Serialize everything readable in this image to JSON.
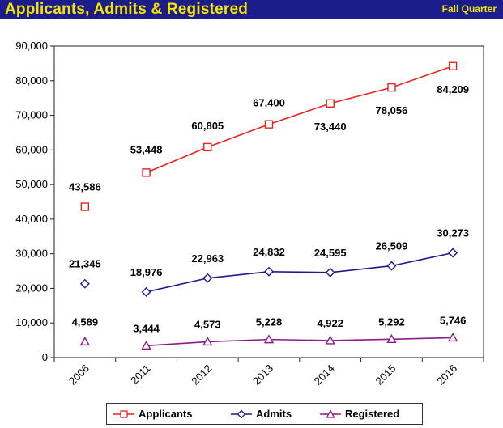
{
  "header": {
    "title": "Applicants, Admits & Registered",
    "subtitle": "Fall Quarter",
    "background": "#1c1c8a",
    "text_color": "#f5e600"
  },
  "chart_data": {
    "type": "line",
    "title": "Applicants, Admits & Registered",
    "subtitle": "Fall Quarter",
    "categories": [
      "2006",
      "2011",
      "2012",
      "2013",
      "2014",
      "2015",
      "2016"
    ],
    "ylim": [
      0,
      90000
    ],
    "yticks": [
      0,
      10000,
      20000,
      30000,
      40000,
      50000,
      60000,
      70000,
      80000,
      90000
    ],
    "ytick_labels": [
      "0",
      "10,000",
      "20,000",
      "30,000",
      "40,000",
      "50,000",
      "60,000",
      "70,000",
      "80,000",
      "90,000"
    ],
    "xlabel": "",
    "ylabel": "",
    "grid": false,
    "legend_position": "bottom",
    "series": [
      {
        "name": "Applicants",
        "color": "#e8231f",
        "marker": "square",
        "values": [
          43586,
          53448,
          60805,
          67400,
          73440,
          78056,
          84209
        ],
        "labels": [
          "43,586",
          "53,448",
          "60,805",
          "67,400",
          "73,440",
          "78,056",
          "84,209"
        ]
      },
      {
        "name": "Admits",
        "color": "#1c1c8a",
        "marker": "diamond",
        "values": [
          21345,
          18976,
          22963,
          24832,
          24595,
          26509,
          30273
        ],
        "labels": [
          "21,345",
          "18,976",
          "22,963",
          "24,832",
          "24,595",
          "26,509",
          "30,273"
        ]
      },
      {
        "name": "Registered",
        "color": "#8b1a8b",
        "marker": "triangle",
        "values": [
          4589,
          3444,
          4573,
          5228,
          4922,
          5292,
          5746
        ],
        "labels": [
          "4,589",
          "3,444",
          "4,573",
          "5,228",
          "4,922",
          "5,292",
          "5,746"
        ]
      }
    ]
  },
  "legend": {
    "items": [
      "Applicants",
      "Admits",
      "Registered"
    ]
  }
}
